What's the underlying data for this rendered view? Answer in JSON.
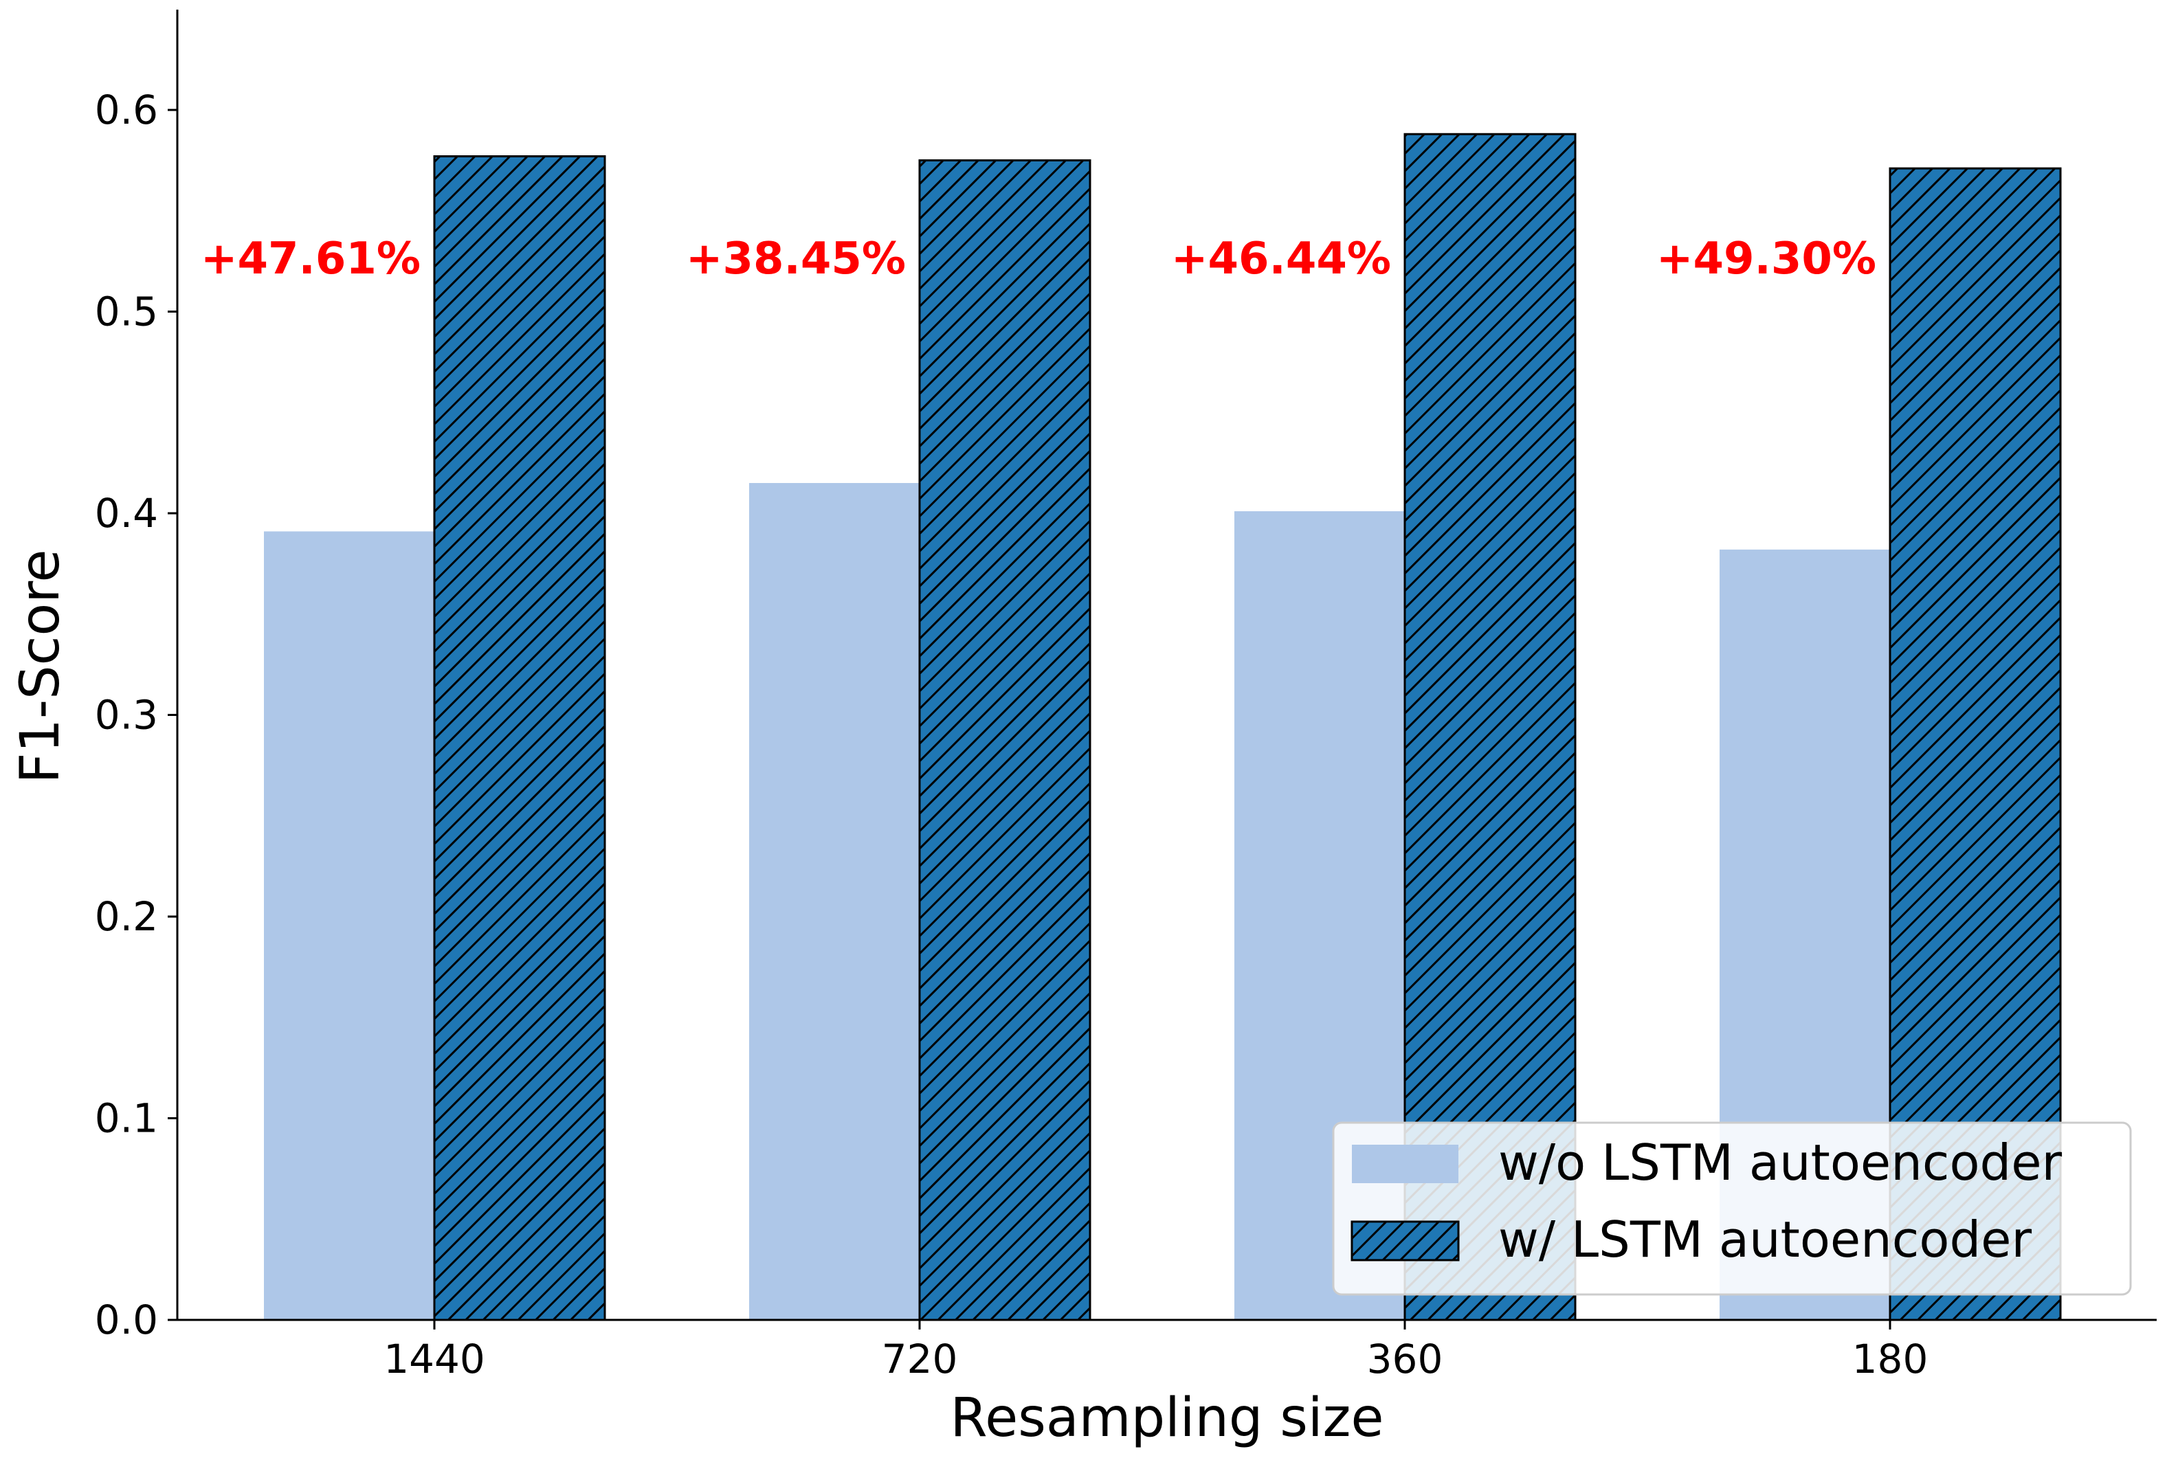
{
  "chart_data": {
    "type": "bar",
    "categories": [
      "1440",
      "720",
      "360",
      "180"
    ],
    "series": [
      {
        "name": "w/o LSTM autoencoder",
        "values": [
          0.391,
          0.415,
          0.401,
          0.382
        ],
        "color": "#aec7e8",
        "pattern": "solid"
      },
      {
        "name": "w/ LSTM autoencoder",
        "values": [
          0.577,
          0.575,
          0.588,
          0.571
        ],
        "color": "#1f77b4",
        "pattern": "diagonal-hatch"
      }
    ],
    "annotations": [
      "+47.61%",
      "+38.45%",
      "+46.44%",
      "+49.30%"
    ],
    "annotation_color": "#ff0000",
    "xlabel": "Resampling size",
    "ylabel": "F1-Score",
    "ylim": [
      0,
      0.65
    ],
    "yticks": [
      "0.0",
      "0.1",
      "0.2",
      "0.3",
      "0.4",
      "0.5",
      "0.6"
    ],
    "grid": false,
    "legend_position": "lower-right"
  }
}
